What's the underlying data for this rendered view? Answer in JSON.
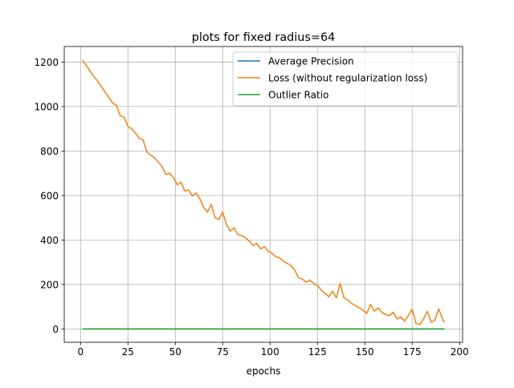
{
  "chart_data": {
    "type": "line",
    "title": "plots for fixed radius=64",
    "xlabel": "epochs",
    "ylabel": "",
    "xlim": [
      -8.6,
      201.6
    ],
    "ylim": [
      -60,
      1270
    ],
    "xticks": [
      0,
      25,
      50,
      75,
      100,
      125,
      150,
      175,
      200
    ],
    "yticks": [
      0,
      200,
      400,
      600,
      800,
      1000,
      1200
    ],
    "grid": true,
    "legend_position": "top-right",
    "series": [
      {
        "name": "Average Precision",
        "color": "#1f77b4",
        "x": [
          1,
          192
        ],
        "y": [
          0,
          0
        ]
      },
      {
        "name": "Loss (without regularization loss)",
        "color": "#ff7f0e",
        "x": [
          1,
          3,
          5,
          7,
          9,
          11,
          13,
          15,
          17,
          19,
          20,
          21,
          23,
          25,
          27,
          29,
          31,
          33,
          35,
          37,
          39,
          41,
          43,
          45,
          47,
          49,
          51,
          53,
          55,
          57,
          59,
          61,
          63,
          65,
          67,
          69,
          71,
          73,
          75,
          77,
          79,
          81,
          83,
          85,
          87,
          89,
          91,
          93,
          95,
          97,
          99,
          101,
          103,
          105,
          107,
          109,
          111,
          113,
          115,
          117,
          119,
          121,
          123,
          125,
          127,
          129,
          131,
          133,
          135,
          137,
          139,
          141,
          143,
          145,
          147,
          149,
          151,
          153,
          155,
          157,
          159,
          161,
          163,
          165,
          167,
          169,
          171,
          173,
          175,
          177,
          179,
          181,
          183,
          185,
          187,
          189,
          191,
          192
        ],
        "y": [
          1208,
          1185,
          1160,
          1135,
          1115,
          1090,
          1065,
          1040,
          1015,
          1005,
          980,
          958,
          952,
          910,
          900,
          880,
          858,
          850,
          795,
          782,
          770,
          750,
          730,
          695,
          700,
          682,
          648,
          660,
          620,
          625,
          598,
          612,
          585,
          545,
          525,
          560,
          500,
          492,
          525,
          470,
          440,
          455,
          425,
          420,
          410,
          395,
          375,
          385,
          360,
          370,
          350,
          340,
          325,
          320,
          305,
          295,
          285,
          265,
          230,
          225,
          210,
          220,
          205,
          195,
          175,
          160,
          145,
          170,
          140,
          205,
          140,
          130,
          115,
          105,
          95,
          85,
          70,
          110,
          80,
          95,
          75,
          65,
          60,
          75,
          45,
          55,
          35,
          60,
          90,
          25,
          20,
          45,
          80,
          30,
          40,
          90,
          45,
          30
        ]
      },
      {
        "name": "Outlier Ratio",
        "color": "#2ca02c",
        "x": [
          1,
          192
        ],
        "y": [
          0,
          0
        ]
      }
    ]
  }
}
